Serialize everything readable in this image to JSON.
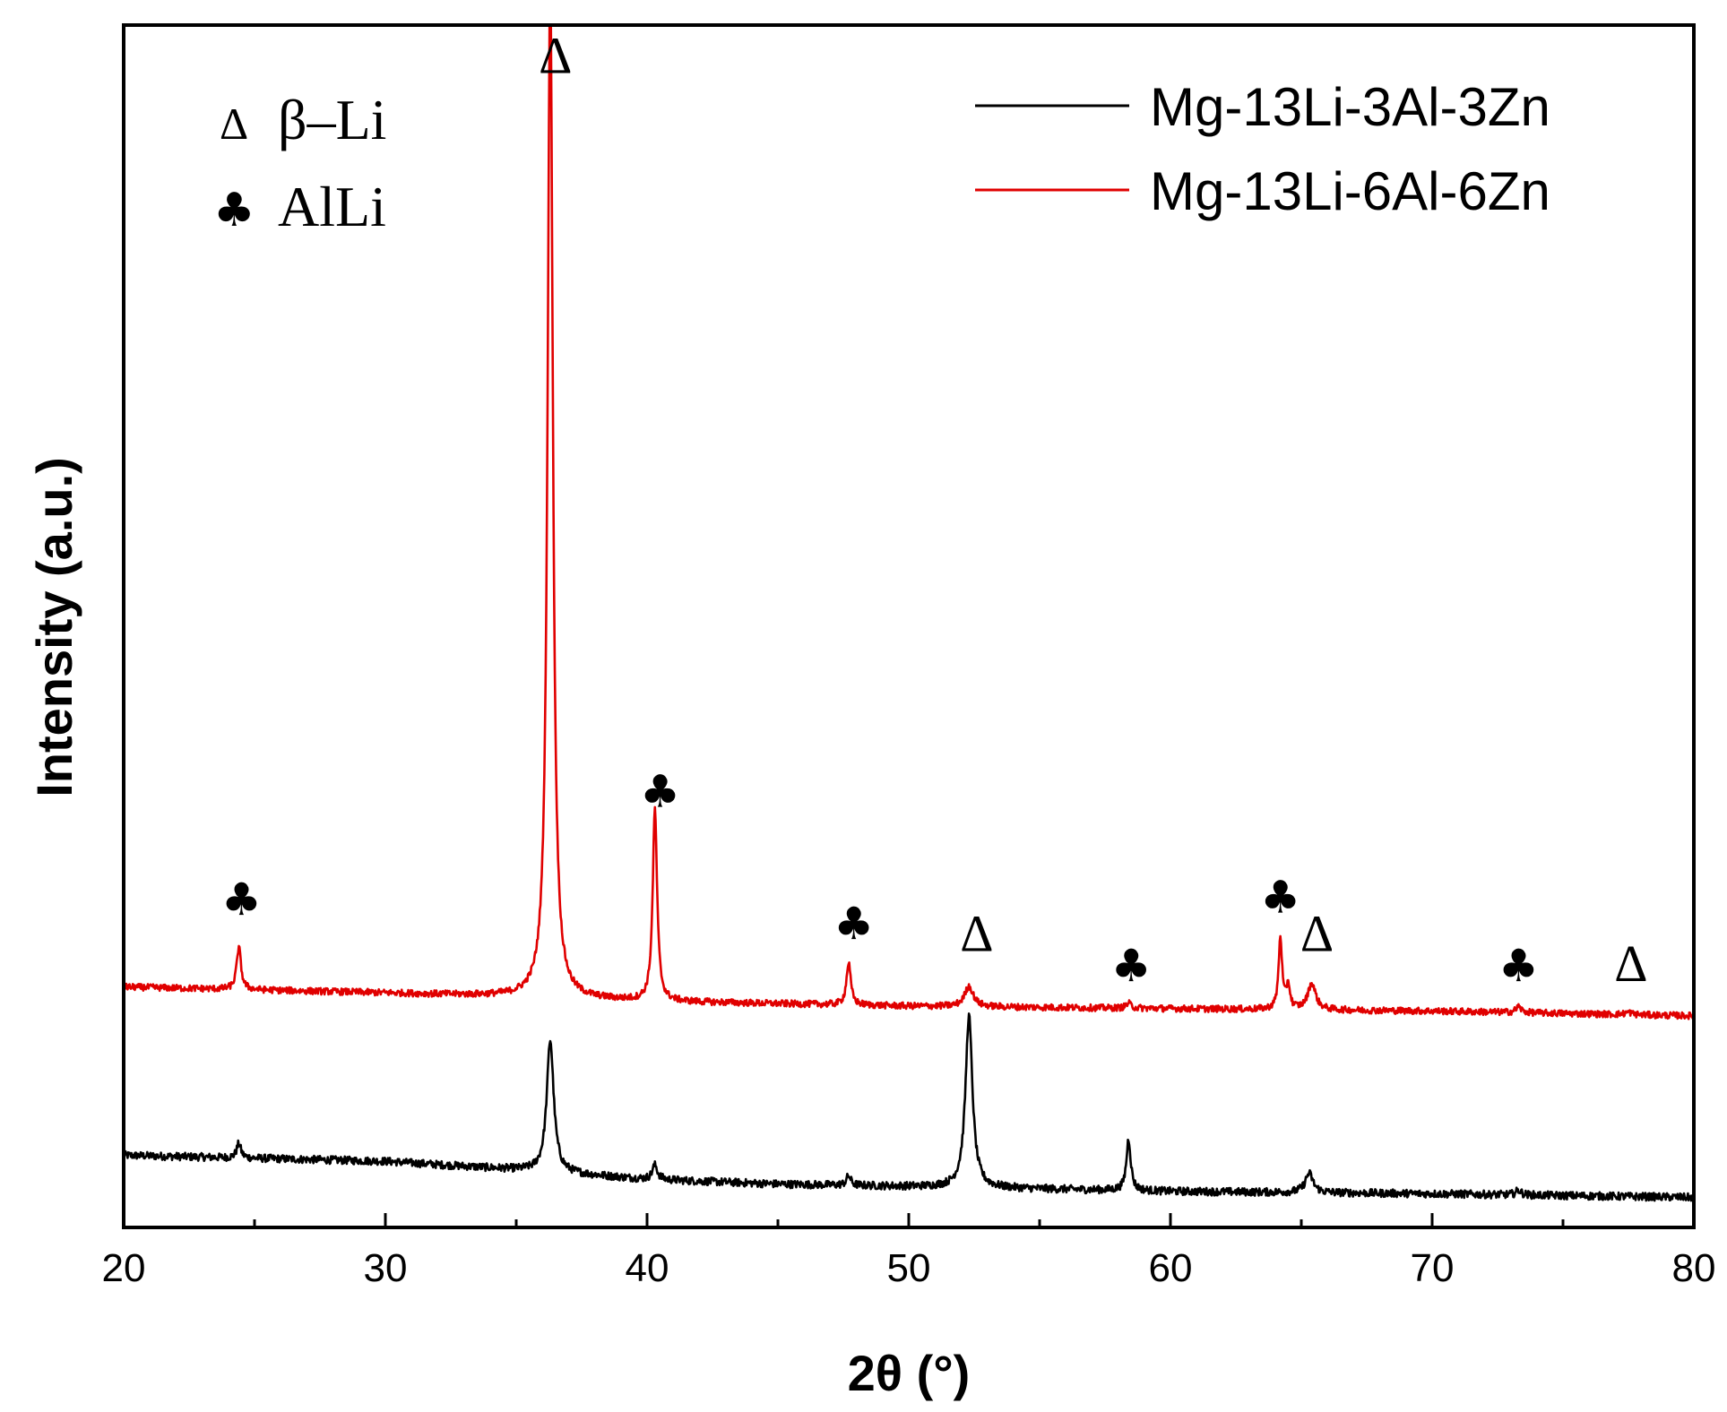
{
  "chart_data": {
    "type": "line",
    "title": "",
    "xlabel": "2θ (°)",
    "ylabel": "Intensity (a.u.)",
    "xlim": [
      20,
      80
    ],
    "x_ticks": [
      20,
      30,
      40,
      50,
      60,
      70,
      80
    ],
    "x_tick_labels": [
      "20",
      "30",
      "40",
      "50",
      "60",
      "70",
      "80"
    ],
    "y_ticks_shown": false,
    "grid": false,
    "legend_position": "top-right",
    "series": [
      {
        "name": "Mg-13Li-3Al-3Zn",
        "color": "#000000",
        "baseline": [
          [
            20,
            0.06
          ],
          [
            30,
            0.055
          ],
          [
            35,
            0.048
          ],
          [
            40,
            0.04
          ],
          [
            45,
            0.036
          ],
          [
            50,
            0.034
          ],
          [
            55,
            0.032
          ],
          [
            60,
            0.03
          ],
          [
            70,
            0.028
          ],
          [
            80,
            0.025
          ]
        ],
        "peaks": [
          {
            "x": 24.4,
            "height": 0.012,
            "width": 0.1
          },
          {
            "x": 36.3,
            "height": 0.11,
            "width": 0.16
          },
          {
            "x": 40.3,
            "height": 0.012,
            "width": 0.12
          },
          {
            "x": 47.7,
            "height": 0.008,
            "width": 0.1
          },
          {
            "x": 52.3,
            "height": 0.143,
            "width": 0.16
          },
          {
            "x": 58.4,
            "height": 0.043,
            "width": 0.1
          },
          {
            "x": 65.3,
            "height": 0.016,
            "width": 0.18
          },
          {
            "x": 73.3,
            "height": 0.004,
            "width": 0.12
          }
        ]
      },
      {
        "name": "Mg-13Li-6Al-6Zn",
        "color": "#e00000",
        "baseline": [
          [
            20,
            0.2
          ],
          [
            30,
            0.195
          ],
          [
            35,
            0.192
          ],
          [
            40,
            0.188
          ],
          [
            45,
            0.186
          ],
          [
            50,
            0.184
          ],
          [
            55,
            0.183
          ],
          [
            60,
            0.182
          ],
          [
            70,
            0.18
          ],
          [
            80,
            0.176
          ]
        ],
        "peaks": [
          {
            "x": 24.4,
            "height": 0.035,
            "width": 0.1
          },
          {
            "x": 36.3,
            "height": 0.85,
            "width": 0.12
          },
          {
            "x": 40.3,
            "height": 0.16,
            "width": 0.1
          },
          {
            "x": 47.7,
            "height": 0.035,
            "width": 0.1
          },
          {
            "x": 52.3,
            "height": 0.017,
            "width": 0.2
          },
          {
            "x": 58.4,
            "height": 0.004,
            "width": 0.12
          },
          {
            "x": 64.2,
            "height": 0.06,
            "width": 0.08
          },
          {
            "x": 64.5,
            "height": 0.02,
            "width": 0.08
          },
          {
            "x": 65.4,
            "height": 0.022,
            "width": 0.18
          },
          {
            "x": 73.3,
            "height": 0.005,
            "width": 0.12
          },
          {
            "x": 77.5,
            "height": 0.002,
            "width": 0.15
          }
        ]
      }
    ],
    "annotations": [
      {
        "symbol": "♣",
        "kind": "club",
        "x": 24.5,
        "y": 0.26
      },
      {
        "symbol": "Δ",
        "kind": "delta",
        "x": 36.5,
        "y": 0.96
      },
      {
        "symbol": "♣",
        "kind": "club",
        "x": 40.5,
        "y": 0.35
      },
      {
        "symbol": "♣",
        "kind": "club",
        "x": 47.9,
        "y": 0.24
      },
      {
        "symbol": "Δ",
        "kind": "delta",
        "x": 52.6,
        "y": 0.23
      },
      {
        "symbol": "♣",
        "kind": "club",
        "x": 58.5,
        "y": 0.205
      },
      {
        "symbol": "♣",
        "kind": "club",
        "x": 64.2,
        "y": 0.262
      },
      {
        "symbol": "Δ",
        "kind": "delta",
        "x": 65.6,
        "y": 0.23
      },
      {
        "symbol": "♣",
        "kind": "club",
        "x": 73.3,
        "y": 0.205
      },
      {
        "symbol": "Δ",
        "kind": "delta",
        "x": 77.6,
        "y": 0.205
      }
    ],
    "phase_key": [
      {
        "symbol": "Δ",
        "label": "β–Li"
      },
      {
        "symbol": "♣",
        "label": "AlLi"
      }
    ]
  }
}
